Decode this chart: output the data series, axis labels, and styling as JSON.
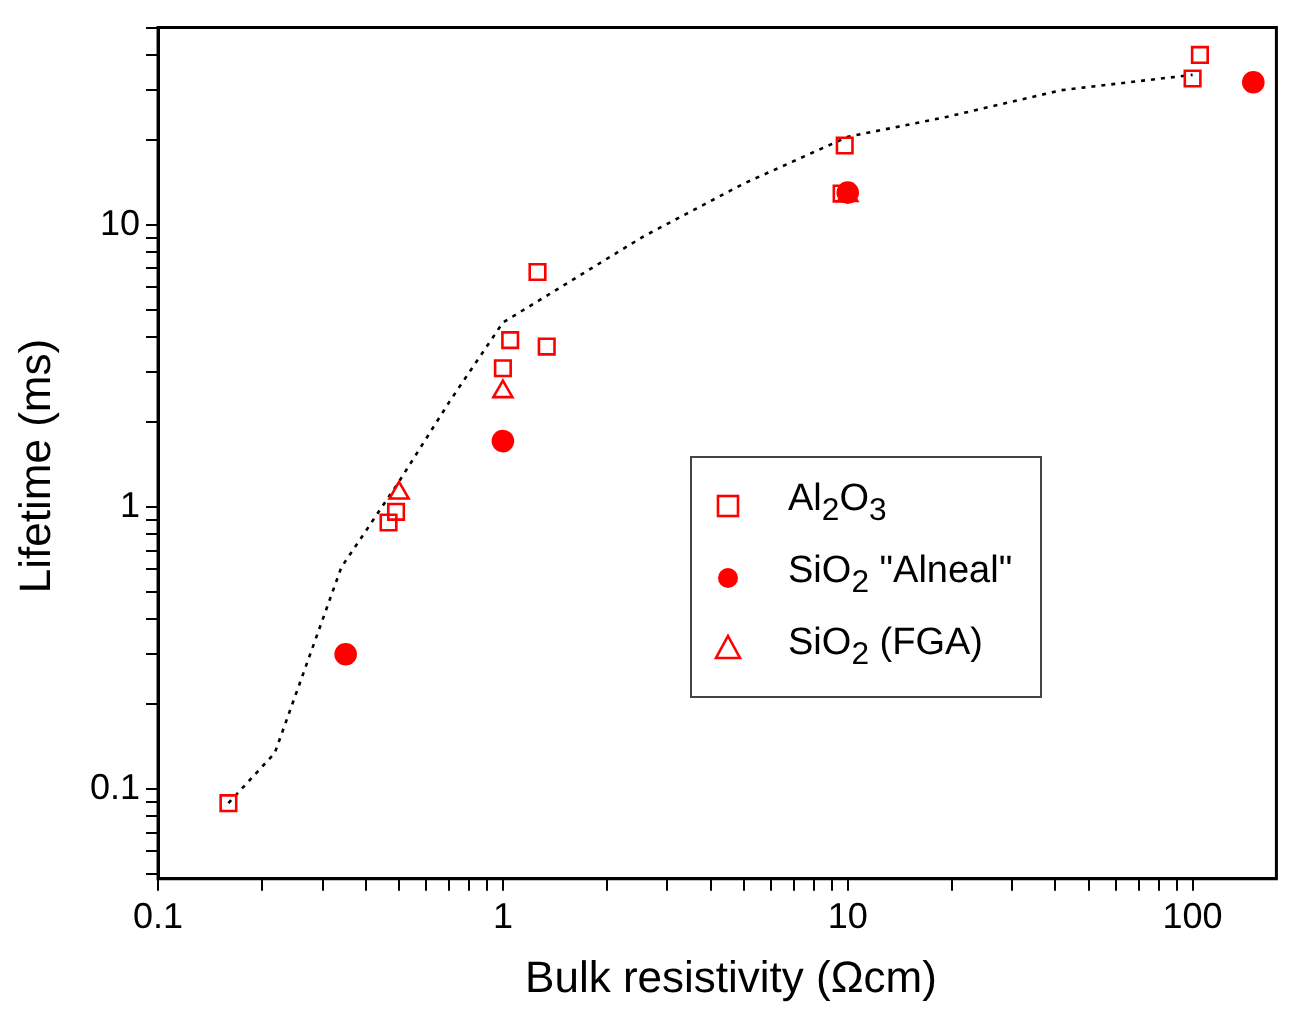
{
  "chart_data": {
    "type": "scatter",
    "xlabel": "Bulk resistivity (Ωcm)",
    "ylabel": "Lifetime (ms)",
    "log": "xy",
    "grid": false,
    "legend": "right",
    "xlim": [
      0.1,
      175
    ],
    "xticks": [
      0.1,
      {
        "value": 0.2,
        "label": null
      },
      {
        "value": 0.3,
        "label": null
      },
      {
        "value": 0.4,
        "label": null
      },
      {
        "value": 0.5,
        "label": null
      },
      {
        "value": 0.6,
        "label": null
      },
      {
        "value": 0.7,
        "label": null
      },
      {
        "value": 0.8,
        "label": null
      },
      {
        "value": 0.9,
        "label": null
      },
      1,
      {
        "value": 2,
        "label": null
      },
      {
        "value": 3,
        "label": null
      },
      {
        "value": 4,
        "label": null
      },
      {
        "value": 5,
        "label": null
      },
      {
        "value": 6,
        "label": null
      },
      {
        "value": 7,
        "label": null
      },
      {
        "value": 8,
        "label": null
      },
      {
        "value": 9,
        "label": null
      },
      10,
      {
        "value": 20,
        "label": null
      },
      {
        "value": 30,
        "label": null
      },
      {
        "value": 40,
        "label": null
      },
      {
        "value": 50,
        "label": null
      },
      {
        "value": 60,
        "label": null
      },
      {
        "value": 70,
        "label": null
      },
      {
        "value": 80,
        "label": null
      },
      {
        "value": 90,
        "label": null
      },
      100
    ],
    "ylim": [
      0.048,
      50
    ],
    "yticks": [
      {
        "value": 0.05,
        "label": null
      },
      {
        "value": 0.06,
        "label": null
      },
      {
        "value": 0.07,
        "label": null
      },
      {
        "value": 0.08,
        "label": null
      },
      {
        "value": 0.09,
        "label": null
      },
      0.1,
      {
        "value": 0.2,
        "label": null
      },
      {
        "value": 0.3,
        "label": null
      },
      {
        "value": 0.4,
        "label": null
      },
      {
        "value": 0.5,
        "label": null
      },
      {
        "value": 0.6,
        "label": null
      },
      {
        "value": 0.7,
        "label": null
      },
      {
        "value": 0.8,
        "label": null
      },
      {
        "value": 0.9,
        "label": null
      },
      1,
      {
        "value": 2,
        "label": null
      },
      {
        "value": 3,
        "label": null
      },
      {
        "value": 4,
        "label": null
      },
      {
        "value": 5,
        "label": null
      },
      {
        "value": 6,
        "label": null
      },
      {
        "value": 7,
        "label": null
      },
      {
        "value": 8,
        "label": null
      },
      {
        "value": 9,
        "label": null
      },
      10,
      {
        "value": 20,
        "label": null
      },
      {
        "value": 30,
        "label": null
      },
      {
        "value": 40,
        "label": null
      },
      {
        "value": 50,
        "label": null
      }
    ],
    "series": [
      {
        "type": "line",
        "color": "#000000",
        "marker": "none",
        "line_style": "dotted",
        "x": [
          0.16,
          0.218,
          0.34,
          0.5,
          0.7,
          1,
          2.56,
          5,
          10,
          19.3,
          41.6,
          100
        ],
        "values": [
          0.089,
          0.134,
          0.61,
          1.23,
          2.36,
          4.5,
          9.1,
          14,
          20.5,
          24.1,
          30,
          34
        ]
      },
      {
        "name": "Al$_{2}$O$_{3}$",
        "color": "#ff0000",
        "marker": "square",
        "x": [
          0.16,
          0.49,
          0.466,
          1,
          1.05,
          1.26,
          1.34,
          9.8,
          9.6,
          105,
          100
        ],
        "values": [
          0.089,
          0.96,
          0.88,
          3.1,
          3.9,
          6.8,
          3.7,
          19.1,
          12.9,
          40,
          33
        ]
      },
      {
        "name": "SiO$_{2}$ \"Alneal\"",
        "color": "#ff0000",
        "marker": "circle",
        "x": [
          0.35,
          1,
          10,
          150
        ],
        "values": [
          0.3,
          1.71,
          13,
          32
        ]
      },
      {
        "name": "SiO$_{2}$ (FGA)",
        "color": "#ff0000",
        "marker": "triangle",
        "x": [
          0.5,
          1,
          10
        ],
        "values": [
          1.12,
          2.56,
          12.7
        ]
      }
    ]
  }
}
